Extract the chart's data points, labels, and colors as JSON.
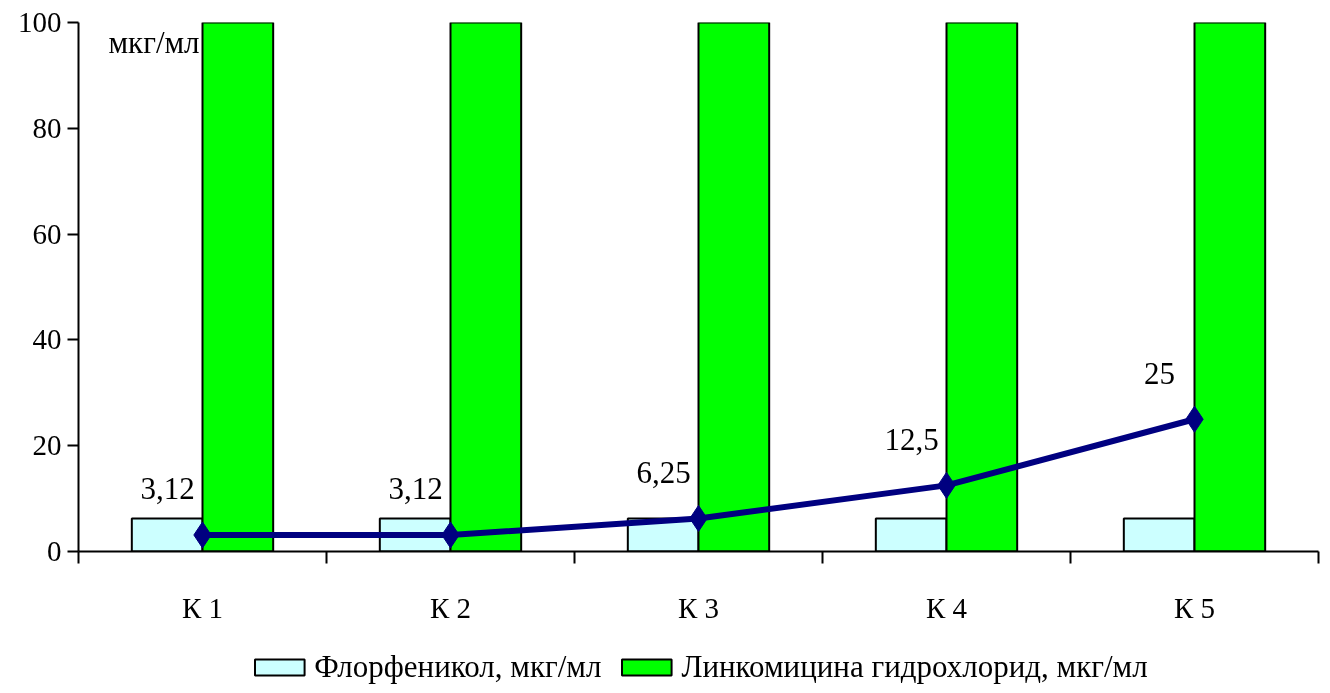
{
  "chart_data": {
    "type": "bar",
    "ylabel": "мкг/мл",
    "categories": [
      "К 1",
      "К 2",
      "К 3",
      "К 4",
      "К 5"
    ],
    "series": [
      {
        "name": "Флорфеникол, мкг/мл",
        "color": "#ccffff",
        "values": [
          6.25,
          6.25,
          6.25,
          6.25,
          6.25
        ]
      },
      {
        "name": "Линкомицина гидрохлорид, мкг/мл",
        "color": "#00ff00",
        "values": [
          100,
          100,
          100,
          100,
          100
        ]
      },
      {
        "type": "line",
        "color": "#000080",
        "marker": "diamond",
        "values": [
          3.12,
          3.12,
          6.25,
          12.5,
          25
        ],
        "value_labels": [
          "3,12",
          "3,12",
          "6,25",
          "12,5",
          "25"
        ]
      }
    ],
    "ylim": [
      0,
      100
    ],
    "yticks": [
      0,
      20,
      40,
      60,
      80,
      100
    ],
    "grid": false,
    "legend": "bottom"
  }
}
